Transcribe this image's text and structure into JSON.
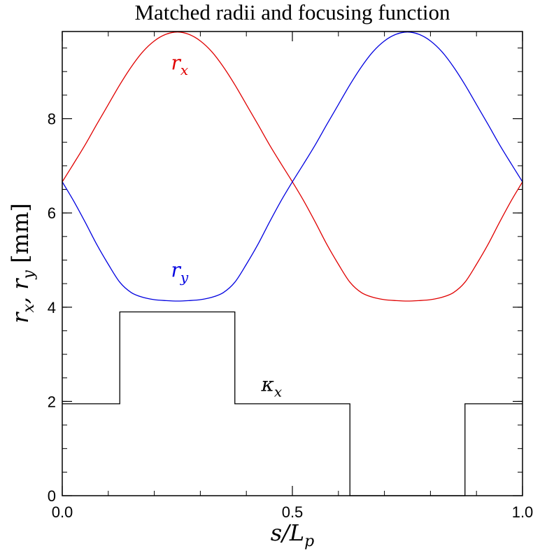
{
  "chart_data": {
    "type": "line",
    "title": "Matched radii and focusing function",
    "xlabel": "s/L_p",
    "ylabel": "r_x, r_y [mm]",
    "xlim": [
      0.0,
      1.0
    ],
    "ylim": [
      0,
      9.85
    ],
    "x_ticks": [
      {
        "value": 0.0,
        "label": "0.0"
      },
      {
        "value": 0.5,
        "label": "0.5"
      },
      {
        "value": 1.0,
        "label": "1.0"
      }
    ],
    "y_ticks": [
      {
        "value": 0,
        "label": "0"
      },
      {
        "value": 2,
        "label": "2"
      },
      {
        "value": 4,
        "label": "4"
      },
      {
        "value": 6,
        "label": "6"
      },
      {
        "value": 8,
        "label": "8"
      }
    ],
    "x_minor_step": 0.1,
    "y_minor_step": 0.5,
    "grid": false,
    "series": [
      {
        "name": "r_x",
        "color": "#e00000",
        "label": {
          "base": "r",
          "sub": "x",
          "at": [
            0.255,
            9.05
          ]
        },
        "x": [
          0.0,
          0.025,
          0.05,
          0.075,
          0.1,
          0.125,
          0.15,
          0.175,
          0.2,
          0.225,
          0.25,
          0.275,
          0.3,
          0.325,
          0.35,
          0.375,
          0.4,
          0.425,
          0.45,
          0.475,
          0.5,
          0.525,
          0.55,
          0.575,
          0.6,
          0.625,
          0.65,
          0.675,
          0.7,
          0.725,
          0.75,
          0.775,
          0.8,
          0.825,
          0.85,
          0.875,
          0.9,
          0.925,
          0.95,
          0.975,
          1.0
        ],
        "y": [
          6.66,
          7.05,
          7.45,
          7.88,
          8.3,
          8.72,
          9.1,
          9.42,
          9.65,
          9.79,
          9.84,
          9.79,
          9.65,
          9.42,
          9.1,
          8.72,
          8.3,
          7.88,
          7.45,
          7.05,
          6.66,
          6.25,
          5.8,
          5.33,
          4.91,
          4.53,
          4.31,
          4.21,
          4.16,
          4.14,
          4.13,
          4.14,
          4.16,
          4.21,
          4.31,
          4.53,
          4.91,
          5.33,
          5.8,
          6.25,
          6.66
        ]
      },
      {
        "name": "r_y",
        "color": "#0000e0",
        "label": {
          "base": "r",
          "sub": "y",
          "at": [
            0.255,
            4.65
          ]
        },
        "x": [
          0.0,
          0.025,
          0.05,
          0.075,
          0.1,
          0.125,
          0.15,
          0.175,
          0.2,
          0.225,
          0.25,
          0.275,
          0.3,
          0.325,
          0.35,
          0.375,
          0.4,
          0.425,
          0.45,
          0.475,
          0.5,
          0.525,
          0.55,
          0.575,
          0.6,
          0.625,
          0.65,
          0.675,
          0.7,
          0.725,
          0.75,
          0.775,
          0.8,
          0.825,
          0.85,
          0.875,
          0.9,
          0.925,
          0.95,
          0.975,
          1.0
        ],
        "y": [
          6.66,
          6.25,
          5.8,
          5.33,
          4.91,
          4.53,
          4.31,
          4.21,
          4.16,
          4.14,
          4.13,
          4.14,
          4.16,
          4.21,
          4.31,
          4.53,
          4.91,
          5.33,
          5.8,
          6.25,
          6.66,
          7.05,
          7.45,
          7.88,
          8.3,
          8.72,
          9.1,
          9.42,
          9.65,
          9.79,
          9.84,
          9.79,
          9.65,
          9.42,
          9.1,
          8.72,
          8.3,
          7.88,
          7.45,
          7.05,
          6.66
        ]
      },
      {
        "name": "κ_x",
        "color": "#000000",
        "step": true,
        "label": {
          "base": "κ",
          "sub": "x",
          "at": [
            0.455,
            2.22
          ]
        },
        "x": [
          0.0,
          0.125,
          0.125,
          0.375,
          0.375,
          0.625,
          0.625,
          0.875,
          0.875,
          1.0
        ],
        "y": [
          1.95,
          1.95,
          3.9,
          3.9,
          1.95,
          1.95,
          0.0,
          0.0,
          1.95,
          1.95
        ]
      }
    ]
  }
}
